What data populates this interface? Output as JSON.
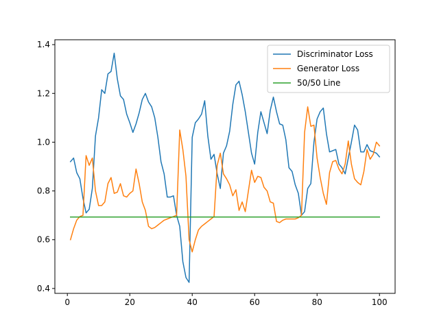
{
  "chart_data": {
    "type": "line",
    "xlim": [
      -4,
      105
    ],
    "ylim": [
      0.38,
      1.42
    ],
    "xticks": [
      0,
      20,
      40,
      60,
      80,
      100
    ],
    "yticks": [
      0.4,
      0.6,
      0.8,
      1.0,
      1.2,
      1.4
    ],
    "xtick_labels": [
      "0",
      "20",
      "40",
      "60",
      "80",
      "100"
    ],
    "ytick_labels": [
      "0.4",
      "0.6",
      "0.8",
      "1.0",
      "1.2",
      "1.4"
    ],
    "grid": false,
    "legend_position": "top-right",
    "series": [
      {
        "name": "Discriminator Loss",
        "color": "#1f77b4",
        "x": [
          1,
          2,
          3,
          4,
          5,
          6,
          7,
          8,
          9,
          10,
          11,
          12,
          13,
          14,
          15,
          16,
          17,
          18,
          19,
          20,
          21,
          22,
          23,
          24,
          25,
          26,
          27,
          28,
          29,
          30,
          31,
          32,
          33,
          34,
          35,
          36,
          37,
          38,
          39,
          40,
          41,
          42,
          43,
          44,
          45,
          46,
          47,
          48,
          49,
          50,
          51,
          52,
          53,
          54,
          55,
          56,
          57,
          58,
          59,
          60,
          61,
          62,
          63,
          64,
          65,
          66,
          67,
          68,
          69,
          70,
          71,
          72,
          73,
          74,
          75,
          76,
          77,
          78,
          79,
          80,
          81,
          82,
          83,
          84,
          85,
          86,
          87,
          88,
          89,
          90,
          91,
          92,
          93,
          94,
          95,
          96,
          97,
          98,
          99,
          100
        ],
        "values": [
          0.92,
          0.935,
          0.875,
          0.85,
          0.77,
          0.71,
          0.725,
          0.81,
          1.025,
          1.1,
          1.215,
          1.2,
          1.28,
          1.29,
          1.365,
          1.26,
          1.19,
          1.175,
          1.115,
          1.08,
          1.04,
          1.075,
          1.12,
          1.175,
          1.2,
          1.165,
          1.145,
          1.1,
          1.02,
          0.92,
          0.87,
          0.775,
          0.775,
          0.78,
          0.7,
          0.655,
          0.51,
          0.445,
          0.425,
          1.02,
          1.08,
          1.095,
          1.115,
          1.17,
          1.025,
          0.93,
          0.95,
          0.87,
          0.81,
          0.955,
          0.985,
          1.045,
          1.155,
          1.235,
          1.25,
          1.195,
          1.125,
          1.04,
          0.955,
          0.91,
          1.04,
          1.125,
          1.08,
          1.035,
          1.13,
          1.185,
          1.125,
          1.075,
          1.07,
          1.01,
          0.895,
          0.88,
          0.825,
          0.79,
          0.7,
          0.715,
          0.81,
          0.83,
          1.0,
          1.095,
          1.125,
          1.14,
          1.035,
          0.96,
          0.965,
          0.97,
          0.91,
          0.895,
          0.87,
          0.935,
          1.0,
          1.07,
          1.05,
          0.96,
          0.96,
          0.99,
          0.965,
          0.96,
          0.955,
          0.94
        ]
      },
      {
        "name": "Generator Loss",
        "color": "#ff7f0e",
        "x": [
          1,
          2,
          3,
          4,
          5,
          6,
          7,
          8,
          9,
          10,
          11,
          12,
          13,
          14,
          15,
          16,
          17,
          18,
          19,
          20,
          21,
          22,
          23,
          24,
          25,
          26,
          27,
          28,
          29,
          30,
          31,
          32,
          33,
          34,
          35,
          36,
          37,
          38,
          39,
          40,
          41,
          42,
          43,
          44,
          45,
          46,
          47,
          48,
          49,
          50,
          51,
          52,
          53,
          54,
          55,
          56,
          57,
          58,
          59,
          60,
          61,
          62,
          63,
          64,
          65,
          66,
          67,
          68,
          69,
          70,
          71,
          72,
          73,
          74,
          75,
          76,
          77,
          78,
          79,
          80,
          81,
          82,
          83,
          84,
          85,
          86,
          87,
          88,
          89,
          90,
          91,
          92,
          93,
          94,
          95,
          96,
          97,
          98,
          99,
          100
        ],
        "values": [
          0.6,
          0.645,
          0.68,
          0.695,
          0.7,
          0.945,
          0.905,
          0.935,
          0.8,
          0.74,
          0.74,
          0.755,
          0.83,
          0.855,
          0.79,
          0.795,
          0.83,
          0.78,
          0.775,
          0.79,
          0.8,
          0.89,
          0.83,
          0.755,
          0.72,
          0.655,
          0.645,
          0.65,
          0.66,
          0.67,
          0.68,
          0.685,
          0.69,
          0.695,
          0.7,
          1.05,
          0.97,
          0.86,
          0.6,
          0.55,
          0.6,
          0.64,
          0.655,
          0.665,
          0.675,
          0.685,
          0.695,
          0.905,
          0.955,
          0.87,
          0.85,
          0.825,
          0.78,
          0.805,
          0.72,
          0.755,
          0.715,
          0.8,
          0.885,
          0.835,
          0.86,
          0.855,
          0.815,
          0.8,
          0.755,
          0.75,
          0.675,
          0.67,
          0.68,
          0.685,
          0.685,
          0.685,
          0.685,
          0.69,
          0.7,
          1.04,
          1.145,
          1.065,
          1.07,
          0.935,
          0.855,
          0.79,
          0.745,
          0.875,
          0.92,
          0.925,
          0.89,
          0.87,
          0.91,
          1.005,
          0.91,
          0.85,
          0.835,
          0.825,
          0.88,
          0.97,
          0.93,
          0.95,
          1.0,
          0.985
        ]
      },
      {
        "name": "50/50 Line",
        "color": "#2ca02c",
        "x": [
          1,
          100
        ],
        "values": [
          0.693,
          0.693
        ]
      }
    ]
  }
}
